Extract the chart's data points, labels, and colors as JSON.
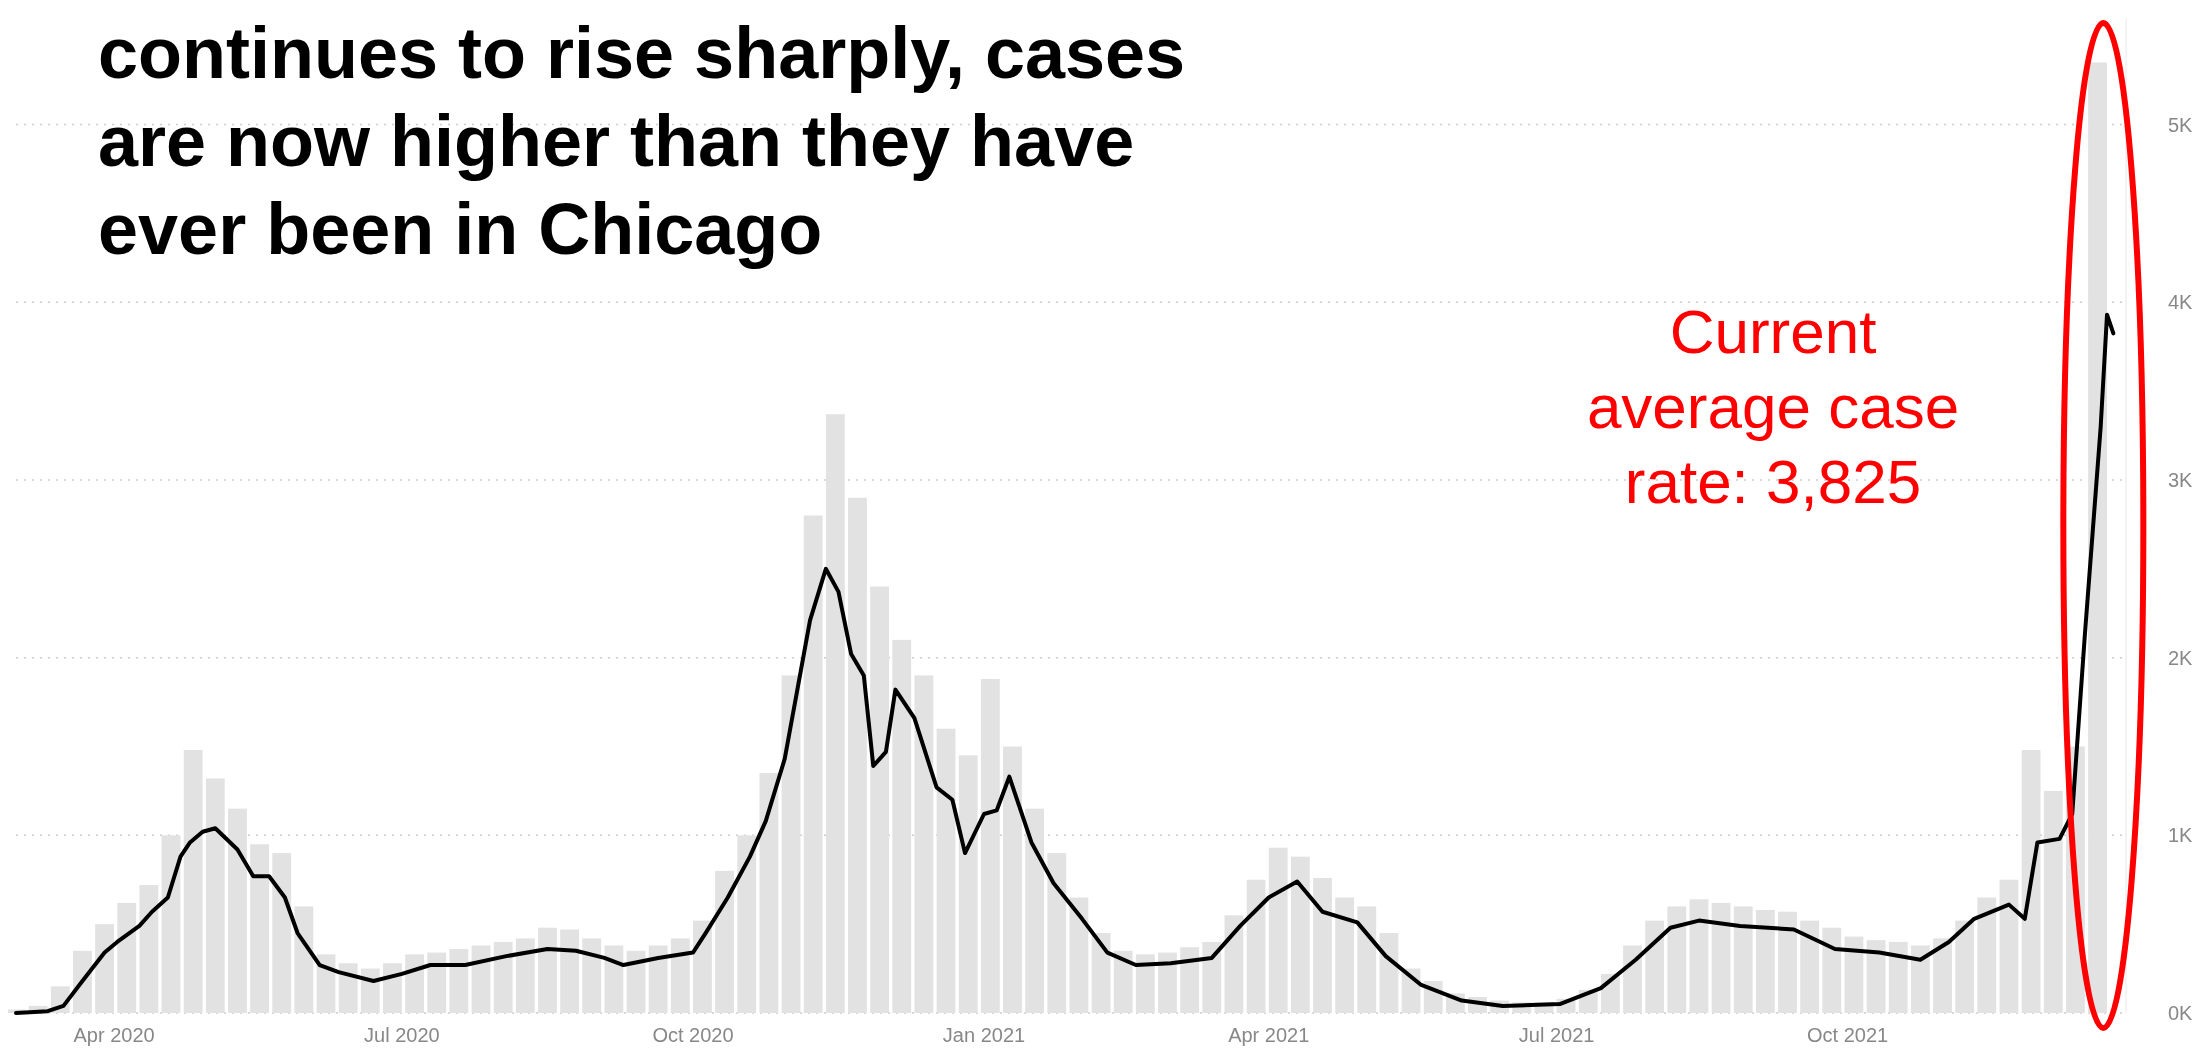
{
  "chart_data": {
    "type": "bar",
    "title": "continues to rise sharply, cases are now higher than they have ever been in Chicago",
    "annotations": [
      "Current average case rate: 3,825"
    ],
    "xlim": [
      "2020-03-01",
      "2021-12-28"
    ],
    "xticks": [
      {
        "value": "2020-04-01",
        "label": "Apr 2020"
      },
      {
        "value": "2020-07-01",
        "label": "Jul 2020"
      },
      {
        "value": "2020-10-01",
        "label": "Oct 2020"
      },
      {
        "value": "2021-01-01",
        "label": "Jan 2021"
      },
      {
        "value": "2021-04-01",
        "label": "Apr 2021"
      },
      {
        "value": "2021-07-01",
        "label": "Jul 2021"
      },
      {
        "value": "2021-10-01",
        "label": "Oct 2021"
      }
    ],
    "ylim": [
      0,
      5600
    ],
    "yticks": [
      {
        "value": 0,
        "label": "0K"
      },
      {
        "value": 1000,
        "label": "1K"
      },
      {
        "value": 2000,
        "label": "2K"
      },
      {
        "value": 3000,
        "label": "3K"
      },
      {
        "value": 4000,
        "label": "4K"
      },
      {
        "value": 5000,
        "label": "5K"
      }
    ],
    "grid": "y",
    "series": [
      {
        "color": "#e2e2e2",
        "x": [
          "2020-03-01",
          "2020-03-08",
          "2020-03-15",
          "2020-03-22",
          "2020-03-29",
          "2020-04-05",
          "2020-04-12",
          "2020-04-19",
          "2020-04-26",
          "2020-05-03",
          "2020-05-10",
          "2020-05-17",
          "2020-05-24",
          "2020-05-31",
          "2020-06-07",
          "2020-06-14",
          "2020-06-21",
          "2020-06-28",
          "2020-07-05",
          "2020-07-12",
          "2020-07-19",
          "2020-07-26",
          "2020-08-02",
          "2020-08-09",
          "2020-08-16",
          "2020-08-23",
          "2020-08-30",
          "2020-09-06",
          "2020-09-13",
          "2020-09-20",
          "2020-09-27",
          "2020-10-04",
          "2020-10-11",
          "2020-10-18",
          "2020-10-25",
          "2020-11-01",
          "2020-11-08",
          "2020-11-15",
          "2020-11-22",
          "2020-11-29",
          "2020-12-06",
          "2020-12-13",
          "2020-12-20",
          "2020-12-27",
          "2021-01-03",
          "2021-01-10",
          "2021-01-17",
          "2021-01-24",
          "2021-01-31",
          "2021-02-07",
          "2021-02-14",
          "2021-02-21",
          "2021-02-28",
          "2021-03-07",
          "2021-03-14",
          "2021-03-21",
          "2021-03-28",
          "2021-04-04",
          "2021-04-11",
          "2021-04-18",
          "2021-04-25",
          "2021-05-02",
          "2021-05-09",
          "2021-05-16",
          "2021-05-23",
          "2021-05-30",
          "2021-06-06",
          "2021-06-13",
          "2021-06-20",
          "2021-06-27",
          "2021-07-04",
          "2021-07-11",
          "2021-07-18",
          "2021-07-25",
          "2021-08-01",
          "2021-08-08",
          "2021-08-15",
          "2021-08-22",
          "2021-08-29",
          "2021-09-05",
          "2021-09-12",
          "2021-09-19",
          "2021-09-26",
          "2021-10-03",
          "2021-10-10",
          "2021-10-17",
          "2021-10-24",
          "2021-10-31",
          "2021-11-07",
          "2021-11-14",
          "2021-11-21",
          "2021-11-28",
          "2021-12-05",
          "2021-12-12",
          "2021-12-19"
        ],
        "values": [
          20,
          40,
          150,
          350,
          500,
          620,
          720,
          1000,
          1480,
          1320,
          1150,
          950,
          900,
          600,
          330,
          280,
          250,
          280,
          330,
          340,
          360,
          380,
          400,
          420,
          480,
          470,
          420,
          380,
          350,
          380,
          420,
          520,
          800,
          1000,
          1350,
          1900,
          2800,
          3370,
          2900,
          2400,
          2100,
          1900,
          1600,
          1450,
          1880,
          1500,
          1150,
          900,
          650,
          450,
          350,
          330,
          340,
          370,
          400,
          550,
          750,
          930,
          880,
          760,
          650,
          600,
          450,
          250,
          180,
          110,
          90,
          70,
          60,
          60,
          80,
          130,
          220,
          380,
          520,
          600,
          640,
          620,
          600,
          580,
          570,
          520,
          480,
          430,
          410,
          400,
          380,
          420,
          520,
          650,
          750,
          1480,
          1250,
          1500,
          5350
        ]
      },
      {
        "type": "line",
        "color": "#000000",
        "x": [
          "2020-03-01",
          "2020-03-11",
          "2020-03-16",
          "2020-03-22",
          "2020-03-29",
          "2020-04-02",
          "2020-04-09",
          "2020-04-13",
          "2020-04-18",
          "2020-04-22",
          "2020-04-25",
          "2020-04-29",
          "2020-05-03",
          "2020-05-10",
          "2020-05-15",
          "2020-05-20",
          "2020-05-25",
          "2020-05-29",
          "2020-06-05",
          "2020-06-11",
          "2020-06-22",
          "2020-07-01",
          "2020-07-10",
          "2020-07-21",
          "2020-08-03",
          "2020-08-16",
          "2020-08-25",
          "2020-09-03",
          "2020-09-09",
          "2020-09-20",
          "2020-10-01",
          "2020-10-05",
          "2020-10-12",
          "2020-10-19",
          "2020-10-24",
          "2020-10-30",
          "2020-11-03",
          "2020-11-07",
          "2020-11-12",
          "2020-11-16",
          "2020-11-20",
          "2020-11-24",
          "2020-11-27",
          "2020-12-01",
          "2020-12-04",
          "2020-12-10",
          "2020-12-17",
          "2020-12-22",
          "2020-12-26",
          "2021-01-01",
          "2021-01-05",
          "2021-01-09",
          "2021-01-16",
          "2021-01-23",
          "2021-02-01",
          "2021-02-09",
          "2021-02-18",
          "2021-03-01",
          "2021-03-14",
          "2021-03-23",
          "2021-04-01",
          "2021-04-10",
          "2021-04-18",
          "2021-04-29",
          "2021-05-08",
          "2021-05-19",
          "2021-06-01",
          "2021-06-14",
          "2021-07-02",
          "2021-07-15",
          "2021-07-26",
          "2021-08-06",
          "2021-08-15",
          "2021-08-28",
          "2021-09-14",
          "2021-09-27",
          "2021-10-11",
          "2021-10-24",
          "2021-11-02",
          "2021-11-10",
          "2021-11-21",
          "2021-11-26",
          "2021-11-30",
          "2021-12-07",
          "2021-12-11",
          "2021-12-15",
          "2021-12-20",
          "2021-12-22",
          "2021-12-24"
        ],
        "values": [
          0,
          10,
          40,
          180,
          340,
          400,
          490,
          570,
          650,
          880,
          960,
          1020,
          1040,
          920,
          770,
          770,
          650,
          450,
          270,
          230,
          180,
          220,
          270,
          270,
          320,
          360,
          350,
          310,
          270,
          310,
          340,
          450,
          650,
          880,
          1080,
          1430,
          1820,
          2210,
          2500,
          2370,
          2020,
          1900,
          1390,
          1470,
          1820,
          1660,
          1270,
          1200,
          900,
          1120,
          1140,
          1330,
          960,
          730,
          530,
          340,
          270,
          280,
          310,
          490,
          650,
          740,
          570,
          510,
          320,
          160,
          70,
          40,
          50,
          140,
          300,
          480,
          520,
          490,
          470,
          360,
          340,
          300,
          400,
          530,
          610,
          530,
          960,
          980,
          1120,
          2130,
          3300,
          3930,
          3825
        ]
      }
    ]
  }
}
